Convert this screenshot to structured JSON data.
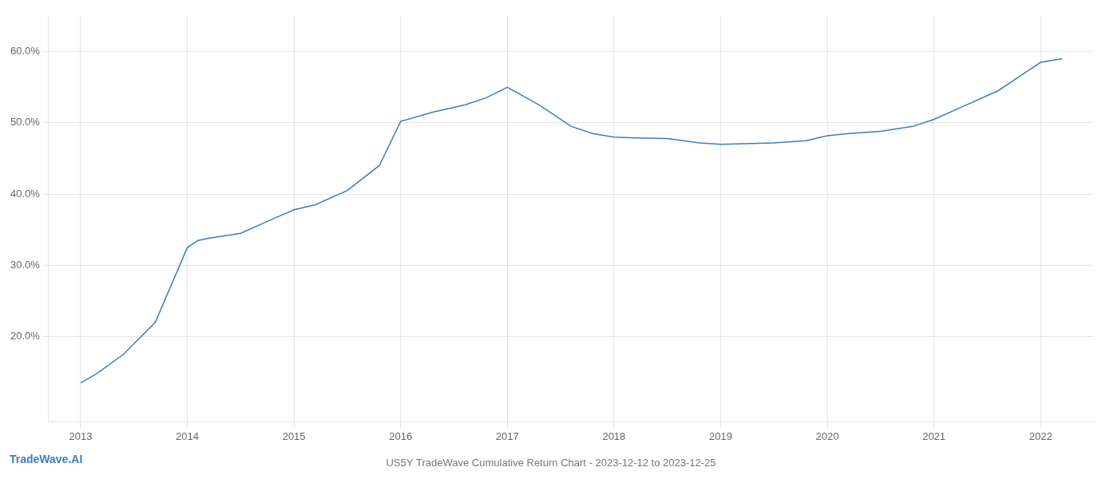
{
  "chart_data": {
    "type": "line",
    "title": "US5Y TradeWave Cumulative Return Chart - 2023-12-12 to 2023-12-25",
    "annotations": [
      "TradeWave.AI"
    ],
    "x": [
      2013.0,
      2013.15,
      2013.4,
      2013.7,
      2014.0,
      2014.1,
      2014.2,
      2014.5,
      2014.8,
      2015.0,
      2015.2,
      2015.5,
      2015.8,
      2016.0,
      2016.3,
      2016.6,
      2016.8,
      2017.0,
      2017.3,
      2017.6,
      2017.8,
      2018.0,
      2018.2,
      2018.5,
      2018.8,
      2019.0,
      2019.3,
      2019.5,
      2019.8,
      2020.0,
      2020.2,
      2020.5,
      2020.8,
      2021.0,
      2021.3,
      2021.6,
      2021.8,
      2022.0,
      2022.2
    ],
    "values": [
      13.5,
      14.8,
      17.5,
      22.0,
      32.5,
      33.5,
      33.8,
      34.5,
      36.5,
      37.8,
      38.5,
      40.5,
      44.0,
      50.2,
      51.5,
      52.5,
      53.5,
      55.0,
      52.5,
      49.5,
      48.5,
      48.0,
      47.9,
      47.8,
      47.2,
      47.0,
      47.1,
      47.2,
      47.5,
      48.2,
      48.5,
      48.8,
      49.5,
      50.5,
      52.5,
      54.5,
      56.5,
      58.5,
      59.0
    ],
    "color": "#3a7ebf",
    "xlim": [
      2012.7,
      2022.5
    ],
    "ylim": [
      8,
      65
    ],
    "xticks": [
      2013,
      2014,
      2015,
      2016,
      2017,
      2018,
      2019,
      2020,
      2021,
      2022
    ],
    "yticks": [
      {
        "value": 20.0,
        "label": "20.0%"
      },
      {
        "value": 30.0,
        "label": "30.0%"
      },
      {
        "value": 40.0,
        "label": "40.0%"
      },
      {
        "value": 50.0,
        "label": "50.0%"
      },
      {
        "value": 60.0,
        "label": "60.0%"
      }
    ],
    "grid": true
  }
}
